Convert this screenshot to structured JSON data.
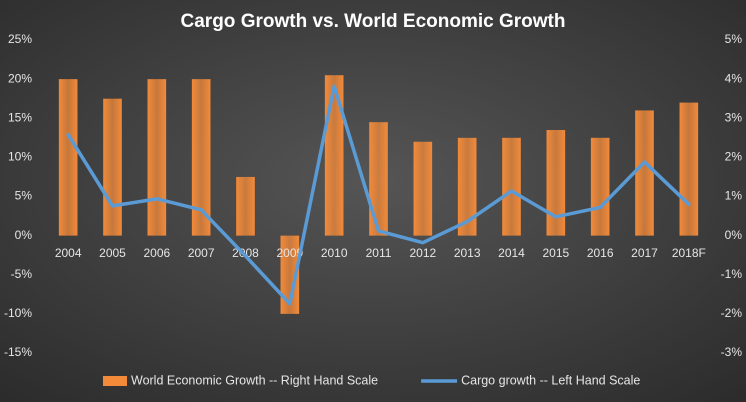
{
  "chart_data": {
    "type": "combo",
    "title": "Cargo Growth vs. World Economic Growth",
    "categories": [
      "2004",
      "2005",
      "2006",
      "2007",
      "2008",
      "2009",
      "2010",
      "2011",
      "2012",
      "2013",
      "2014",
      "2015",
      "2016",
      "2017",
      "2018F"
    ],
    "series": [
      {
        "name": "World Economic Growth -- Right Hand Scale",
        "type": "bar",
        "axis": "y2",
        "color": "#f28a3a",
        "values": [
          4.0,
          3.5,
          4.0,
          4.0,
          1.5,
          -2.0,
          4.1,
          2.9,
          2.4,
          2.5,
          2.5,
          2.7,
          2.5,
          3.2,
          3.4
        ]
      },
      {
        "name": "Cargo growth -- Left Hand Scale",
        "type": "line",
        "axis": "y",
        "color": "#5b9bd5",
        "values": [
          12.9,
          3.8,
          4.7,
          3.3,
          -2.6,
          -8.7,
          19.1,
          0.6,
          -0.9,
          1.8,
          5.7,
          2.4,
          3.6,
          9.4,
          4.0
        ]
      }
    ],
    "ylim": [
      -15,
      25
    ],
    "yticks": [
      {
        "value": -15,
        "label": "-15%"
      },
      {
        "value": -10,
        "label": "-10%"
      },
      {
        "value": -5,
        "label": "-5%"
      },
      {
        "value": 0,
        "label": "0%"
      },
      {
        "value": 5,
        "label": "5%"
      },
      {
        "value": 10,
        "label": "10%"
      },
      {
        "value": 15,
        "label": "15%"
      },
      {
        "value": 20,
        "label": "20%"
      },
      {
        "value": 25,
        "label": "25%"
      }
    ],
    "y2lim": [
      -3,
      5
    ],
    "y2ticks": [
      {
        "value": -3,
        "label": "-3%"
      },
      {
        "value": -2,
        "label": "-2%"
      },
      {
        "value": -1,
        "label": "-1%"
      },
      {
        "value": 0,
        "label": "0%"
      },
      {
        "value": 1,
        "label": "1%"
      },
      {
        "value": 2,
        "label": "2%"
      },
      {
        "value": 3,
        "label": "3%"
      },
      {
        "value": 4,
        "label": "4%"
      },
      {
        "value": 5,
        "label": "5%"
      }
    ],
    "grid": false,
    "legend": "bottom"
  }
}
